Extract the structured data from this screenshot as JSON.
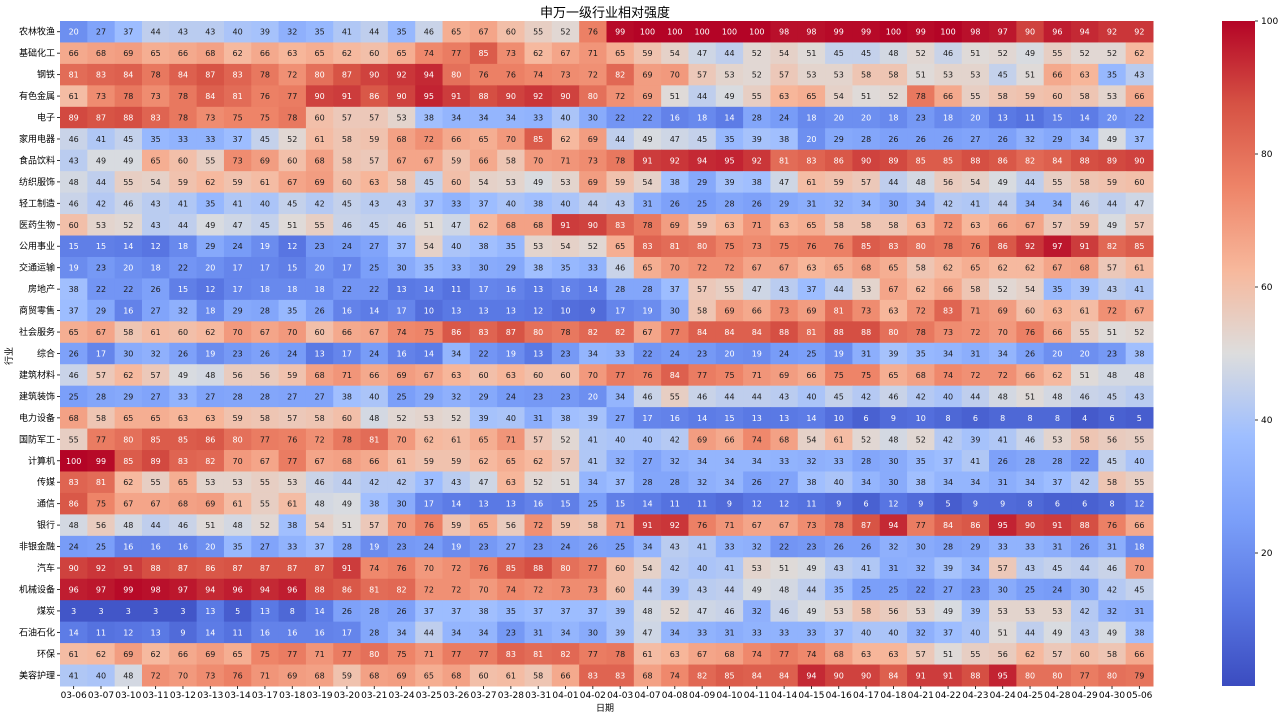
{
  "chart_data": {
    "type": "heatmap",
    "title": "申万一级行业相对强度",
    "xlabel": "日期",
    "ylabel": "行业",
    "x": [
      "03-06",
      "03-07",
      "03-10",
      "03-11",
      "03-12",
      "03-13",
      "03-14",
      "03-17",
      "03-18",
      "03-19",
      "03-20",
      "03-21",
      "03-24",
      "03-25",
      "03-26",
      "03-27",
      "03-28",
      "03-31",
      "04-01",
      "04-02",
      "04-03",
      "04-07",
      "04-08",
      "04-09",
      "04-10",
      "04-11",
      "04-14",
      "04-15",
      "04-16",
      "04-17",
      "04-18",
      "04-21",
      "04-22",
      "04-23",
      "04-24",
      "04-25",
      "04-28",
      "04-29",
      "04-30",
      "05-06"
    ],
    "y": [
      "农林牧渔",
      "基础化工",
      "钢铁",
      "有色金属",
      "电子",
      "家用电器",
      "食品饮料",
      "纺织服饰",
      "轻工制造",
      "医药生物",
      "公用事业",
      "交通运输",
      "房地产",
      "商贸零售",
      "社会服务",
      "综合",
      "建筑材料",
      "建筑装饰",
      "电力设备",
      "国防军工",
      "计算机",
      "传媒",
      "通信",
      "银行",
      "非银金融",
      "汽车",
      "机械设备",
      "煤炭",
      "石油石化",
      "环保",
      "美容护理"
    ],
    "values": [
      [
        20,
        27,
        37,
        44,
        43,
        43,
        40,
        39,
        32,
        35,
        41,
        44,
        35,
        46,
        65,
        67,
        60,
        55,
        52,
        76,
        99,
        100,
        100,
        100,
        100,
        100,
        98,
        98,
        99,
        99,
        100,
        99,
        100,
        98,
        97,
        90,
        96,
        94,
        92,
        92
      ],
      [
        66,
        68,
        69,
        65,
        66,
        68,
        62,
        66,
        63,
        65,
        62,
        60,
        65,
        74,
        77,
        85,
        73,
        62,
        67,
        71,
        65,
        59,
        54,
        47,
        44,
        52,
        54,
        51,
        45,
        45,
        48,
        52,
        46,
        51,
        52,
        49,
        55,
        52,
        52,
        62
      ],
      [
        81,
        83,
        84,
        78,
        84,
        87,
        83,
        78,
        72,
        80,
        87,
        90,
        92,
        94,
        80,
        76,
        76,
        74,
        73,
        72,
        82,
        69,
        70,
        57,
        53,
        52,
        57,
        53,
        53,
        58,
        58,
        51,
        53,
        53,
        45,
        51,
        66,
        63,
        35,
        43
      ],
      [
        61,
        73,
        78,
        73,
        78,
        84,
        81,
        76,
        77,
        90,
        91,
        86,
        90,
        95,
        91,
        88,
        90,
        92,
        90,
        80,
        72,
        69,
        51,
        44,
        49,
        55,
        63,
        65,
        54,
        51,
        52,
        78,
        66,
        55,
        58,
        59,
        60,
        58,
        53,
        66
      ],
      [
        89,
        87,
        88,
        83,
        78,
        73,
        75,
        75,
        78,
        60,
        57,
        57,
        53,
        38,
        34,
        34,
        34,
        33,
        40,
        30,
        22,
        22,
        16,
        18,
        14,
        28,
        24,
        18,
        20,
        20,
        18,
        23,
        18,
        20,
        13,
        11,
        15,
        14,
        20,
        22
      ],
      [
        46,
        41,
        45,
        35,
        33,
        33,
        37,
        45,
        52,
        61,
        58,
        59,
        68,
        72,
        66,
        65,
        70,
        85,
        62,
        69,
        44,
        49,
        47,
        45,
        35,
        39,
        38,
        20,
        29,
        28,
        26,
        26,
        26,
        27,
        26,
        32,
        29,
        34,
        49,
        37
      ],
      [
        43,
        49,
        49,
        65,
        60,
        55,
        73,
        69,
        60,
        68,
        58,
        57,
        67,
        67,
        59,
        66,
        58,
        70,
        71,
        73,
        78,
        91,
        92,
        94,
        95,
        92,
        81,
        83,
        86,
        90,
        89,
        85,
        85,
        88,
        86,
        82,
        84,
        88,
        89,
        90
      ],
      [
        48,
        44,
        55,
        54,
        59,
        62,
        59,
        61,
        67,
        69,
        60,
        63,
        58,
        45,
        60,
        54,
        53,
        49,
        53,
        69,
        59,
        54,
        38,
        29,
        39,
        38,
        47,
        61,
        59,
        57,
        44,
        48,
        56,
        54,
        49,
        44,
        55,
        58,
        59,
        60
      ],
      [
        46,
        42,
        46,
        43,
        41,
        35,
        41,
        40,
        45,
        42,
        45,
        43,
        43,
        37,
        33,
        37,
        40,
        38,
        40,
        44,
        43,
        31,
        26,
        25,
        28,
        26,
        29,
        31,
        32,
        34,
        30,
        34,
        42,
        41,
        44,
        34,
        34,
        46,
        44,
        47
      ],
      [
        60,
        53,
        52,
        43,
        44,
        49,
        47,
        45,
        51,
        55,
        46,
        45,
        46,
        51,
        47,
        62,
        68,
        68,
        91,
        90,
        83,
        78,
        69,
        59,
        63,
        71,
        63,
        65,
        58,
        58,
        58,
        63,
        72,
        63,
        66,
        67,
        57,
        59,
        49,
        57
      ],
      [
        15,
        15,
        14,
        12,
        18,
        29,
        24,
        19,
        12,
        23,
        24,
        27,
        37,
        54,
        40,
        38,
        35,
        53,
        54,
        52,
        65,
        83,
        81,
        80,
        75,
        73,
        75,
        76,
        76,
        85,
        83,
        80,
        78,
        76,
        86,
        92,
        97,
        91,
        82,
        85
      ],
      [
        19,
        23,
        20,
        18,
        22,
        20,
        17,
        17,
        15,
        20,
        17,
        25,
        30,
        35,
        33,
        30,
        29,
        38,
        35,
        33,
        46,
        65,
        70,
        72,
        72,
        67,
        67,
        63,
        65,
        68,
        65,
        58,
        62,
        65,
        62,
        62,
        67,
        68,
        57,
        61
      ],
      [
        38,
        22,
        22,
        26,
        15,
        12,
        17,
        18,
        18,
        18,
        22,
        22,
        13,
        14,
        11,
        17,
        16,
        13,
        16,
        14,
        28,
        28,
        37,
        57,
        55,
        47,
        43,
        37,
        44,
        53,
        67,
        62,
        66,
        58,
        52,
        54,
        35,
        39,
        43,
        41
      ],
      [
        37,
        29,
        16,
        27,
        32,
        18,
        29,
        28,
        35,
        26,
        16,
        14,
        17,
        10,
        13,
        13,
        13,
        12,
        10,
        9,
        17,
        19,
        30,
        58,
        69,
        66,
        73,
        69,
        81,
        73,
        63,
        72,
        83,
        71,
        69,
        60,
        63,
        61,
        72,
        67
      ],
      [
        65,
        67,
        58,
        61,
        60,
        62,
        70,
        67,
        70,
        60,
        66,
        67,
        74,
        75,
        86,
        83,
        87,
        80,
        78,
        82,
        82,
        67,
        77,
        84,
        84,
        84,
        88,
        81,
        88,
        88,
        80,
        78,
        73,
        72,
        70,
        76,
        66,
        55,
        51,
        52
      ],
      [
        26,
        17,
        30,
        32,
        26,
        19,
        23,
        26,
        24,
        13,
        17,
        24,
        16,
        14,
        34,
        22,
        19,
        13,
        23,
        34,
        33,
        22,
        24,
        23,
        20,
        19,
        24,
        25,
        19,
        31,
        39,
        35,
        34,
        31,
        34,
        26,
        20,
        20,
        23,
        38
      ],
      [
        46,
        57,
        62,
        57,
        49,
        48,
        56,
        56,
        59,
        68,
        71,
        66,
        69,
        67,
        63,
        60,
        63,
        60,
        60,
        70,
        77,
        76,
        84,
        77,
        75,
        71,
        69,
        66,
        75,
        75,
        65,
        68,
        74,
        72,
        72,
        66,
        62,
        51,
        48,
        48
      ],
      [
        25,
        28,
        29,
        27,
        33,
        27,
        28,
        28,
        27,
        27,
        38,
        40,
        25,
        29,
        32,
        29,
        24,
        23,
        23,
        20,
        34,
        46,
        55,
        46,
        44,
        44,
        43,
        40,
        45,
        42,
        46,
        42,
        40,
        44,
        48,
        51,
        48,
        46,
        45,
        43
      ],
      [
        68,
        58,
        65,
        65,
        63,
        63,
        59,
        58,
        57,
        58,
        60,
        48,
        52,
        53,
        52,
        39,
        40,
        31,
        38,
        39,
        27,
        17,
        16,
        14,
        15,
        13,
        13,
        14,
        10,
        6,
        9,
        10,
        8,
        6,
        8,
        8,
        8,
        4,
        6,
        5
      ],
      [
        55,
        77,
        80,
        85,
        85,
        86,
        80,
        77,
        76,
        72,
        78,
        81,
        70,
        62,
        61,
        65,
        71,
        57,
        52,
        41,
        40,
        40,
        42,
        69,
        66,
        74,
        68,
        54,
        61,
        52,
        48,
        52,
        42,
        39,
        41,
        46,
        53,
        58,
        56,
        55
      ],
      [
        100,
        99,
        85,
        89,
        83,
        82,
        70,
        67,
        77,
        67,
        68,
        66,
        61,
        59,
        59,
        62,
        65,
        62,
        57,
        41,
        32,
        27,
        32,
        34,
        34,
        34,
        33,
        32,
        33,
        28,
        30,
        35,
        37,
        41,
        26,
        28,
        28,
        22,
        45,
        40
      ],
      [
        83,
        81,
        62,
        55,
        65,
        53,
        53,
        55,
        53,
        46,
        44,
        42,
        42,
        37,
        43,
        47,
        63,
        52,
        51,
        34,
        37,
        28,
        28,
        32,
        34,
        26,
        27,
        38,
        40,
        34,
        30,
        38,
        34,
        34,
        31,
        34,
        37,
        42,
        58,
        55
      ],
      [
        86,
        75,
        67,
        67,
        68,
        69,
        61,
        55,
        61,
        48,
        49,
        38,
        30,
        17,
        14,
        13,
        13,
        16,
        15,
        25,
        15,
        14,
        11,
        11,
        9,
        12,
        12,
        11,
        9,
        6,
        12,
        9,
        5,
        9,
        9,
        8,
        6,
        6,
        8,
        12
      ],
      [
        48,
        56,
        48,
        44,
        46,
        51,
        48,
        52,
        38,
        54,
        51,
        57,
        70,
        76,
        59,
        65,
        56,
        72,
        59,
        58,
        71,
        91,
        92,
        76,
        71,
        67,
        67,
        73,
        78,
        87,
        94,
        77,
        84,
        86,
        95,
        90,
        91,
        88,
        76,
        66
      ],
      [
        24,
        25,
        16,
        16,
        16,
        20,
        35,
        27,
        33,
        37,
        28,
        19,
        23,
        24,
        19,
        23,
        27,
        23,
        24,
        26,
        25,
        34,
        43,
        41,
        33,
        32,
        22,
        23,
        26,
        26,
        32,
        30,
        28,
        29,
        33,
        33,
        31,
        26,
        31,
        18
      ],
      [
        90,
        92,
        91,
        88,
        87,
        86,
        87,
        87,
        87,
        87,
        91,
        74,
        76,
        70,
        72,
        76,
        85,
        88,
        80,
        77,
        60,
        54,
        42,
        40,
        41,
        53,
        51,
        49,
        43,
        41,
        31,
        32,
        39,
        34,
        57,
        43,
        45,
        44,
        46,
        70
      ],
      [
        96,
        97,
        99,
        98,
        97,
        94,
        96,
        94,
        96,
        88,
        86,
        81,
        82,
        72,
        72,
        70,
        74,
        72,
        73,
        73,
        60,
        44,
        39,
        43,
        44,
        49,
        48,
        44,
        35,
        25,
        25,
        22,
        27,
        23,
        30,
        25,
        24,
        30,
        42,
        45
      ],
      [
        3,
        3,
        3,
        3,
        3,
        13,
        5,
        13,
        8,
        14,
        26,
        28,
        26,
        37,
        37,
        38,
        35,
        37,
        37,
        37,
        39,
        48,
        52,
        47,
        46,
        32,
        46,
        49,
        53,
        58,
        56,
        53,
        49,
        39,
        53,
        53,
        53,
        42,
        32,
        31
      ],
      [
        14,
        11,
        12,
        13,
        9,
        14,
        11,
        16,
        16,
        16,
        17,
        28,
        34,
        44,
        34,
        34,
        23,
        31,
        34,
        30,
        39,
        47,
        34,
        33,
        31,
        33,
        33,
        33,
        37,
        40,
        40,
        32,
        37,
        40,
        51,
        44,
        49,
        43,
        49,
        38
      ],
      [
        61,
        62,
        69,
        62,
        66,
        69,
        65,
        75,
        77,
        71,
        77,
        80,
        75,
        71,
        77,
        77,
        83,
        81,
        82,
        77,
        78,
        61,
        63,
        67,
        68,
        74,
        77,
        74,
        68,
        63,
        63,
        57,
        51,
        55,
        56,
        62,
        57,
        60,
        58,
        66
      ],
      [
        41,
        40,
        48,
        72,
        70,
        73,
        76,
        71,
        69,
        68,
        59,
        68,
        69,
        65,
        68,
        60,
        61,
        58,
        66,
        83,
        83,
        68,
        74,
        82,
        85,
        84,
        84,
        94,
        90,
        90,
        84,
        91,
        91,
        88,
        95,
        80,
        80,
        77,
        80,
        79
      ]
    ],
    "colormap": "coolwarm",
    "colorbar": {
      "min": 0,
      "max": 100,
      "ticks": [
        20,
        40,
        60,
        80,
        100
      ]
    },
    "annotated": true
  }
}
